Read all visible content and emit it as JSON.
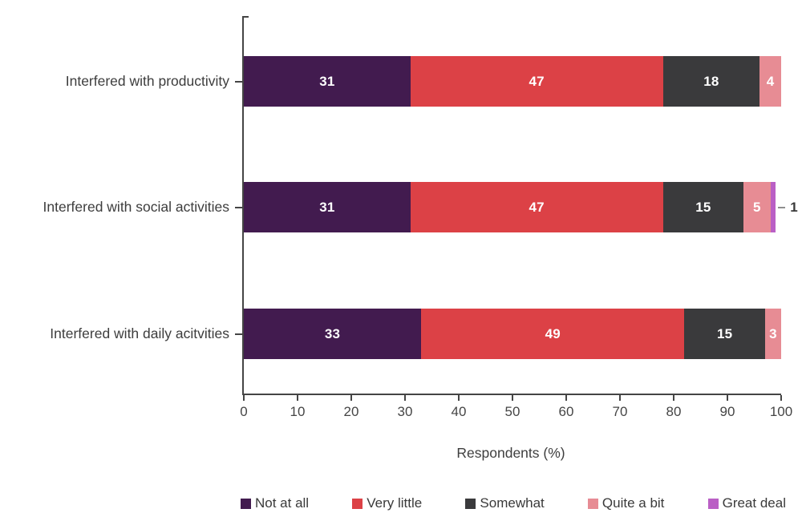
{
  "chart_data": {
    "type": "bar",
    "variant": "horizontal-stacked",
    "title": "",
    "xlabel": "Respondents (%)",
    "ylabel": "",
    "xlim": [
      0,
      100
    ],
    "x_ticks": [
      0,
      10,
      20,
      30,
      40,
      50,
      60,
      70,
      80,
      90,
      100
    ],
    "grid": false,
    "legend_position": "bottom",
    "categories": [
      "Interfered with productivity",
      "Interfered with social activities",
      "Interfered with daily acitvities"
    ],
    "series": [
      {
        "name": "Not at all",
        "color": "#421b4f",
        "values": [
          31,
          31,
          33
        ]
      },
      {
        "name": "Very little",
        "color": "#dc4146",
        "values": [
          47,
          47,
          49
        ]
      },
      {
        "name": "Somewhat",
        "color": "#3a3a3c",
        "values": [
          18,
          15,
          15
        ]
      },
      {
        "name": "Quite a bit",
        "color": "#e78c94",
        "values": [
          4,
          5,
          3
        ]
      },
      {
        "name": "Great deal",
        "color": "#ba5fc5",
        "values": [
          0,
          1,
          0
        ]
      }
    ],
    "colors": {
      "axis": "#454545",
      "label_text": "#3d3d3d",
      "inside_value_label": "#ffffff",
      "outside_value_label": "#3a3a3a",
      "background": "#ffffff"
    }
  }
}
